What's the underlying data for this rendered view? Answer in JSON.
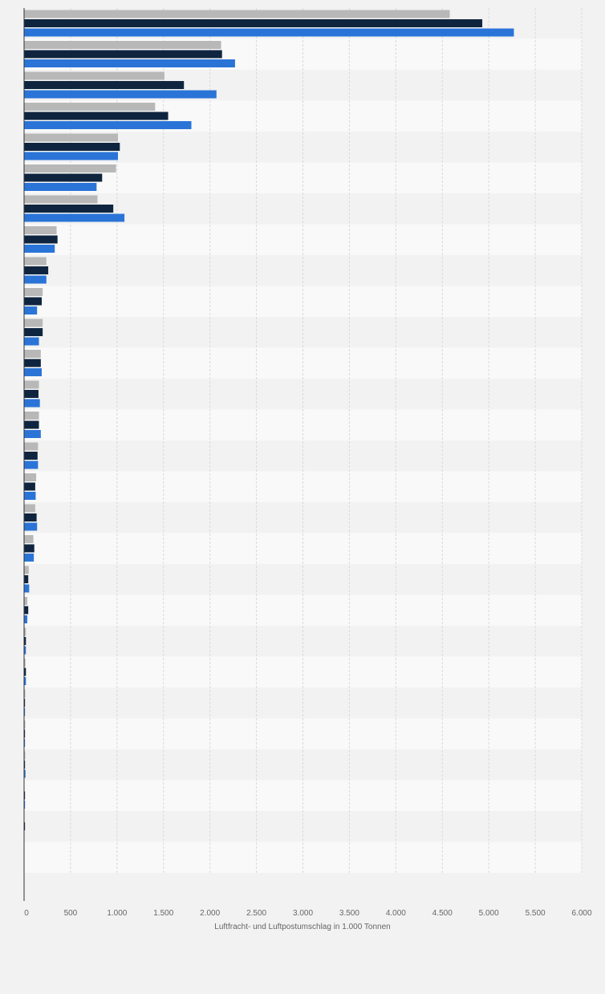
{
  "chart_data": {
    "type": "bar",
    "orientation": "horizontal",
    "title": "",
    "xlabel": "Luftfracht- und Luftpostumschlag in 1.000 Tonnen",
    "ylabel": "",
    "xlim": [
      0,
      6000
    ],
    "x_ticks": [
      0,
      500,
      1000,
      1500,
      2000,
      2500,
      3000,
      3500,
      4000,
      4500,
      5000,
      5500,
      6000
    ],
    "x_tick_labels": [
      "0",
      "500",
      "1.000",
      "1.500",
      "2.000",
      "2.500",
      "3.000",
      "3.500",
      "4.000",
      "4.500",
      "5.000",
      "5.500",
      "6.000"
    ],
    "grid": true,
    "legend": "none",
    "category_count": 28,
    "series": [
      {
        "color": "#b8b8b8",
        "values": [
          4580,
          2120,
          1510,
          1410,
          1010,
          990,
          790,
          350,
          240,
          200,
          200,
          180,
          160,
          160,
          150,
          130,
          120,
          100,
          50,
          35,
          20,
          15,
          5,
          5,
          5,
          0,
          0,
          0
        ]
      },
      {
        "color": "#0f253f",
        "values": [
          4930,
          2130,
          1720,
          1550,
          1030,
          840,
          960,
          360,
          260,
          190,
          200,
          180,
          155,
          160,
          145,
          120,
          135,
          110,
          45,
          45,
          20,
          20,
          10,
          10,
          10,
          10,
          10,
          0
        ]
      },
      {
        "color": "#2a74d8",
        "values": [
          5270,
          2270,
          2070,
          1800,
          1010,
          780,
          1080,
          330,
          240,
          140,
          160,
          190,
          170,
          180,
          150,
          125,
          140,
          105,
          55,
          35,
          20,
          20,
          10,
          10,
          15,
          10,
          0,
          0
        ]
      }
    ]
  }
}
